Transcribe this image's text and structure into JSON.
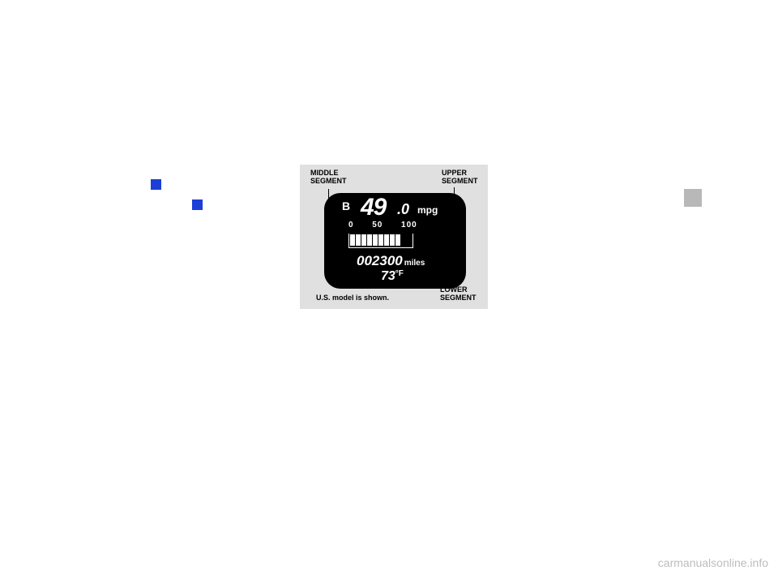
{
  "colors": {
    "page_bg": "#ffffff",
    "tab_bg": "#b8b8b8",
    "blue_marker": "#1c3fd6",
    "diagram_bg": "#e0e0e0",
    "gauge_bg": "#000000",
    "gauge_text": "#ffffff",
    "label_text": "#000000",
    "watermark_text": "#bdbdbd"
  },
  "labels": {
    "middle": "MIDDLE\nSEGMENT",
    "upper": "UPPER\nSEGMENT",
    "lower": "LOWER\nSEGMENT",
    "model_note": "U.S. model is shown."
  },
  "gauge": {
    "trip_letter": "B",
    "mpg_whole": "49",
    "mpg_decimal": ".0",
    "mpg_unit": "mpg",
    "scale_0": "0",
    "scale_50": "50",
    "scale_100": "100",
    "scale_display": "0      50      100",
    "bar_fill_count": 9,
    "odometer": "002300",
    "odometer_unit": "miles",
    "temp_value": "73",
    "temp_unit": "°F"
  },
  "watermark": "carmanualsonline.info"
}
